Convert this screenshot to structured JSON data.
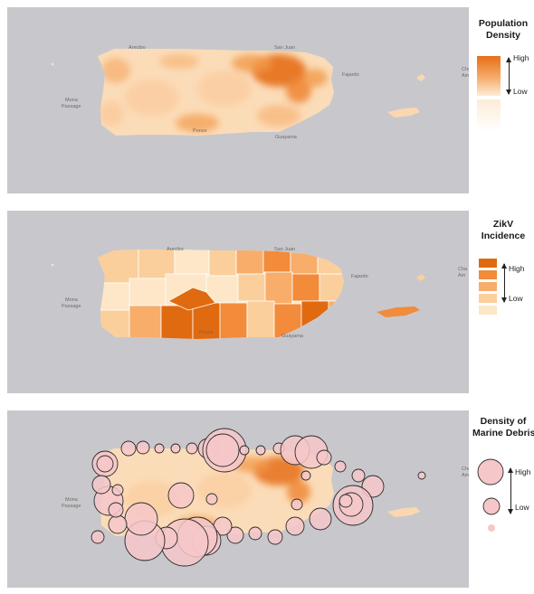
{
  "panels": [
    {
      "legend_title_line1": "Population",
      "legend_title_line2": "Density",
      "high_label": "High",
      "low_label": "Low",
      "encoding": "continuous gradient",
      "palette": [
        "#fde9d2",
        "#fbc797",
        "#f39a4b",
        "#e66f17"
      ]
    },
    {
      "legend_title_line1": "ZikV",
      "legend_title_line2": "Incidence",
      "high_label": "High",
      "low_label": "Low",
      "encoding": "5-class choropleth by municipality",
      "classes": [
        "#fde7c8",
        "#fbcf9c",
        "#f8ad6b",
        "#f28b3a",
        "#e06a10"
      ]
    },
    {
      "legend_title_line1": "Density of",
      "legend_title_line2": "Marine Debris",
      "high_label": "High",
      "low_label": "Low",
      "encoding": "proportional circles over population density",
      "circle_fill": "#f6c7c9",
      "circle_stroke": "#2c2c2c"
    }
  ],
  "colors": {
    "water": "#c8c8cc",
    "land_base": "#fbe3c5"
  }
}
